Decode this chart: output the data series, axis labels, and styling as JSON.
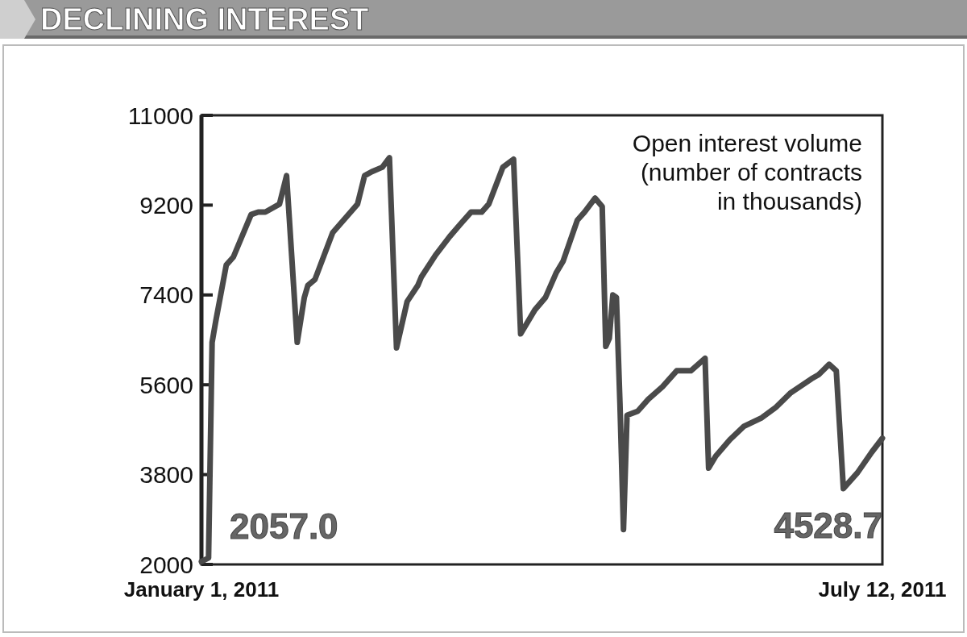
{
  "chart_data": {
    "type": "line",
    "title": "DECLINING INTEREST",
    "ylabel": "Open interest volume (number of contracts in thousands)",
    "xlim": [
      "2011-01-01",
      "2011-07-12"
    ],
    "xticks": [
      {
        "value": "2011-01-01",
        "label": "January 1, 2011"
      },
      {
        "value": "2011-07-12",
        "label": "July 12, 2011"
      }
    ],
    "ylim": [
      2000,
      11000
    ],
    "yticks": [
      2000,
      3800,
      5600,
      7400,
      9200,
      11000
    ],
    "x": [
      "2011-01-01",
      "2011-01-03",
      "2011-01-04",
      "2011-01-05",
      "2011-01-08",
      "2011-01-10",
      "2011-01-15",
      "2011-01-17",
      "2011-01-19",
      "2011-01-23",
      "2011-01-25",
      "2011-01-28",
      "2011-01-30",
      "2011-01-31",
      "2011-02-02",
      "2011-02-07",
      "2011-02-14",
      "2011-02-16",
      "2011-02-18",
      "2011-02-21",
      "2011-02-23",
      "2011-02-25",
      "2011-02-28",
      "2011-03-03",
      "2011-03-04",
      "2011-03-08",
      "2011-03-12",
      "2011-03-15",
      "2011-03-18",
      "2011-03-21",
      "2011-03-23",
      "2011-03-27",
      "2011-03-30",
      "2011-04-01",
      "2011-04-05",
      "2011-04-08",
      "2011-04-11",
      "2011-04-13",
      "2011-04-17",
      "2011-04-19",
      "2011-04-22",
      "2011-04-24",
      "2011-04-25",
      "2011-04-26",
      "2011-04-27",
      "2011-04-28",
      "2011-04-29",
      "2011-04-30",
      "2011-05-01",
      "2011-05-04",
      "2011-05-07",
      "2011-05-11",
      "2011-05-15",
      "2011-05-19",
      "2011-05-23",
      "2011-05-24",
      "2011-05-26",
      "2011-05-30",
      "2011-06-03",
      "2011-06-08",
      "2011-06-12",
      "2011-06-16",
      "2011-06-22",
      "2011-06-24",
      "2011-06-27",
      "2011-06-29",
      "2011-07-01",
      "2011-07-05",
      "2011-07-09",
      "2011-07-12"
    ],
    "series": [
      {
        "color": "#4a4a4a",
        "values": [
          2057,
          2130,
          6450,
          6860,
          8000,
          8160,
          9010,
          9060,
          9060,
          9220,
          9790,
          6450,
          7350,
          7590,
          7710,
          8650,
          9220,
          9790,
          9870,
          9960,
          10150,
          6340,
          7270,
          7590,
          7760,
          8200,
          8570,
          8820,
          9060,
          9060,
          9220,
          9960,
          10120,
          6620,
          7100,
          7350,
          7840,
          8080,
          8900,
          9060,
          9340,
          9170,
          6370,
          6530,
          7400,
          7350,
          5230,
          2700,
          4990,
          5070,
          5310,
          5560,
          5880,
          5880,
          6130,
          3930,
          4170,
          4500,
          4770,
          4940,
          5150,
          5430,
          5720,
          5800,
          6010,
          5880,
          3520,
          3840,
          4250,
          4528.7
        ]
      }
    ],
    "annotations": [
      {
        "text": "2057.0",
        "x": "2011-01-01",
        "y": 2057
      },
      {
        "text": "4528.7",
        "x": "2011-07-12",
        "y": 4528.7
      }
    ]
  }
}
